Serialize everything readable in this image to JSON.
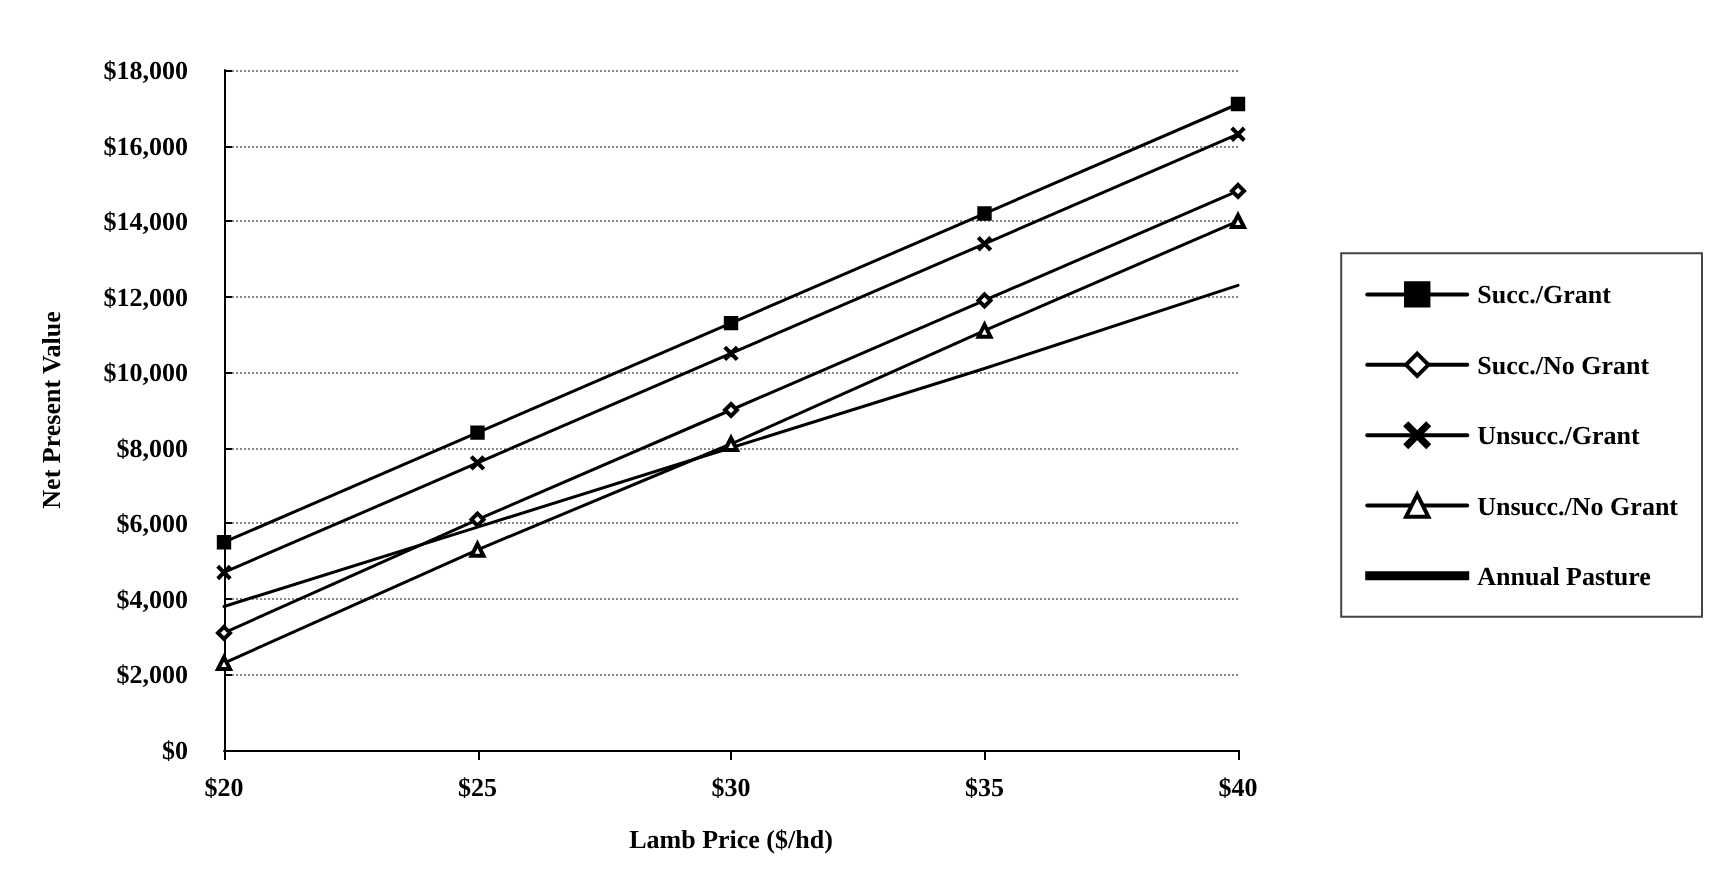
{
  "chart_data": {
    "type": "line",
    "xlabel": "Lamb Price ($/hd)",
    "ylabel": "Net Present Value",
    "x": [
      20,
      25,
      30,
      35,
      40
    ],
    "series": [
      {
        "name": "Succ./Grant",
        "color": "#000000",
        "marker": "square",
        "values": [
          5500,
          8400,
          11300,
          14200,
          17100
        ]
      },
      {
        "name": "Succ./No Grant",
        "color": "#000000",
        "marker": "diamond",
        "values": [
          3100,
          6100,
          9000,
          11900,
          14800
        ]
      },
      {
        "name": "Unsucc./Grant",
        "color": "#000000",
        "marker": "cross",
        "values": [
          4700,
          7600,
          10500,
          13400,
          16300
        ]
      },
      {
        "name": "Unsucc./No Grant",
        "color": "#000000",
        "marker": "triangle",
        "values": [
          2300,
          5300,
          8100,
          11100,
          14000
        ]
      },
      {
        "name": "Annual Pasture",
        "color": "#000000",
        "marker": "none",
        "values": [
          3800,
          5900,
          8000,
          10100,
          12300
        ]
      }
    ],
    "xlim": [
      20,
      40
    ],
    "xticks": [
      {
        "value": 20,
        "label": "$20"
      },
      {
        "value": 25,
        "label": "$25"
      },
      {
        "value": 30,
        "label": "$30"
      },
      {
        "value": 35,
        "label": "$35"
      },
      {
        "value": 40,
        "label": "$40"
      }
    ],
    "ylim": [
      0,
      18000
    ],
    "yticks": [
      {
        "value": 0,
        "label": "$0"
      },
      {
        "value": 2000,
        "label": "$2,000"
      },
      {
        "value": 4000,
        "label": "$4,000"
      },
      {
        "value": 6000,
        "label": "$6,000"
      },
      {
        "value": 8000,
        "label": "$8,000"
      },
      {
        "value": 10000,
        "label": "$10,000"
      },
      {
        "value": 12000,
        "label": "$12,000"
      },
      {
        "value": 14000,
        "label": "$14,000"
      },
      {
        "value": 16000,
        "label": "$16,000"
      },
      {
        "value": 18000,
        "label": "$18,000"
      }
    ],
    "grid": "y",
    "legend": "right"
  }
}
